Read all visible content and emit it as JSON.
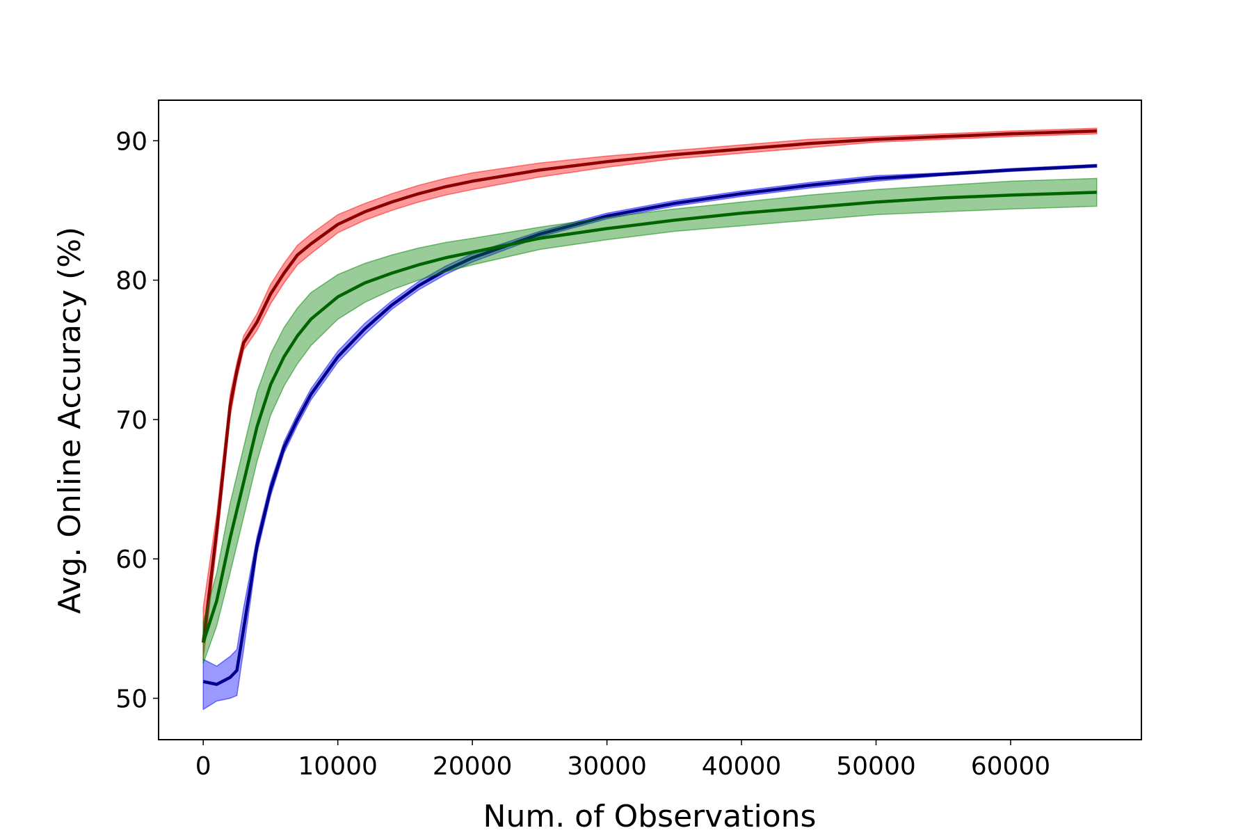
{
  "chart_data": {
    "type": "line",
    "xlabel": "Num. of Observations",
    "ylabel": "Avg. Online Accuracy (%)",
    "x": [
      0,
      1000,
      2000,
      2500,
      3000,
      4000,
      5000,
      6000,
      7000,
      8000,
      10000,
      12000,
      14000,
      16000,
      18000,
      20000,
      25000,
      30000,
      35000,
      40000,
      45000,
      50000,
      55000,
      60000,
      66400
    ],
    "xlim": [
      -3320,
      69720
    ],
    "ylim": [
      47.03,
      92.91
    ],
    "xticks": [
      0,
      10000,
      20000,
      30000,
      40000,
      50000,
      60000
    ],
    "yticks": [
      50,
      60,
      70,
      80,
      90
    ],
    "grid": false,
    "series": [
      {
        "color": "#8b0000",
        "fill": "#ff0000",
        "values": [
          54,
          62,
          71,
          73.5,
          75.5,
          77,
          79,
          80.5,
          81.8,
          82.6,
          84,
          84.9,
          85.6,
          86.2,
          86.7,
          87.1,
          87.9,
          88.5,
          89,
          89.4,
          89.8,
          90.1,
          90.3,
          90.5,
          90.7
        ],
        "lower": [
          52.8,
          61,
          70.2,
          72.9,
          75,
          76.4,
          78.3,
          79.8,
          81.1,
          81.9,
          83.4,
          84.3,
          85,
          85.6,
          86.1,
          86.5,
          87.4,
          88.1,
          88.7,
          89.1,
          89.5,
          89.9,
          90.1,
          90.3,
          90.5
        ],
        "upper": [
          56.5,
          63.2,
          71.8,
          74.1,
          76,
          77.6,
          79.7,
          81.2,
          82.5,
          83.3,
          84.7,
          85.5,
          86.2,
          86.8,
          87.3,
          87.7,
          88.4,
          88.9,
          89.3,
          89.7,
          90.1,
          90.3,
          90.5,
          90.7,
          90.9
        ]
      },
      {
        "color": "#00008b",
        "fill": "#0000ff",
        "values": [
          51.2,
          51,
          51.5,
          52,
          55,
          61,
          65,
          68,
          70,
          71.8,
          74.5,
          76.5,
          78.2,
          79.6,
          80.7,
          81.6,
          83.3,
          84.6,
          85.5,
          86.2,
          86.8,
          87.3,
          87.6,
          87.9,
          88.2
        ],
        "lower": [
          49.2,
          49.8,
          50,
          50.2,
          53.5,
          60.4,
          64.5,
          67.6,
          69.6,
          71.4,
          74.1,
          76.1,
          77.9,
          79.3,
          80.4,
          81.3,
          83.1,
          84.4,
          85.3,
          86,
          86.6,
          87.1,
          87.5,
          87.8,
          88.1
        ],
        "upper": [
          52.8,
          52.3,
          53,
          53.5,
          56.5,
          61.6,
          65.5,
          68.4,
          70.4,
          72.2,
          74.9,
          76.9,
          78.5,
          79.9,
          81,
          81.9,
          83.5,
          84.8,
          85.7,
          86.4,
          87,
          87.5,
          87.7,
          88,
          88.3
        ]
      },
      {
        "color": "#006400",
        "fill": "#008000",
        "values": [
          54,
          57,
          61.5,
          63.5,
          65.5,
          69.5,
          72.5,
          74.5,
          76,
          77.2,
          78.8,
          79.8,
          80.5,
          81.1,
          81.6,
          82,
          83,
          83.7,
          84.3,
          84.8,
          85.2,
          85.6,
          85.9,
          86.1,
          86.3
        ],
        "lower": [
          52.5,
          55.2,
          59,
          61,
          63,
          67,
          70.3,
          72.4,
          74,
          75.3,
          77.2,
          78.4,
          79.3,
          80,
          80.6,
          81.1,
          82.2,
          82.9,
          83.5,
          83.9,
          84.3,
          84.7,
          84.9,
          85.1,
          85.3
        ],
        "upper": [
          55.5,
          59,
          64,
          66,
          68,
          72,
          74.7,
          76.6,
          78,
          79.1,
          80.4,
          81.2,
          81.8,
          82.3,
          82.7,
          83,
          83.8,
          84.5,
          85.1,
          85.6,
          86.1,
          86.5,
          86.8,
          87.1,
          87.3
        ]
      }
    ]
  }
}
